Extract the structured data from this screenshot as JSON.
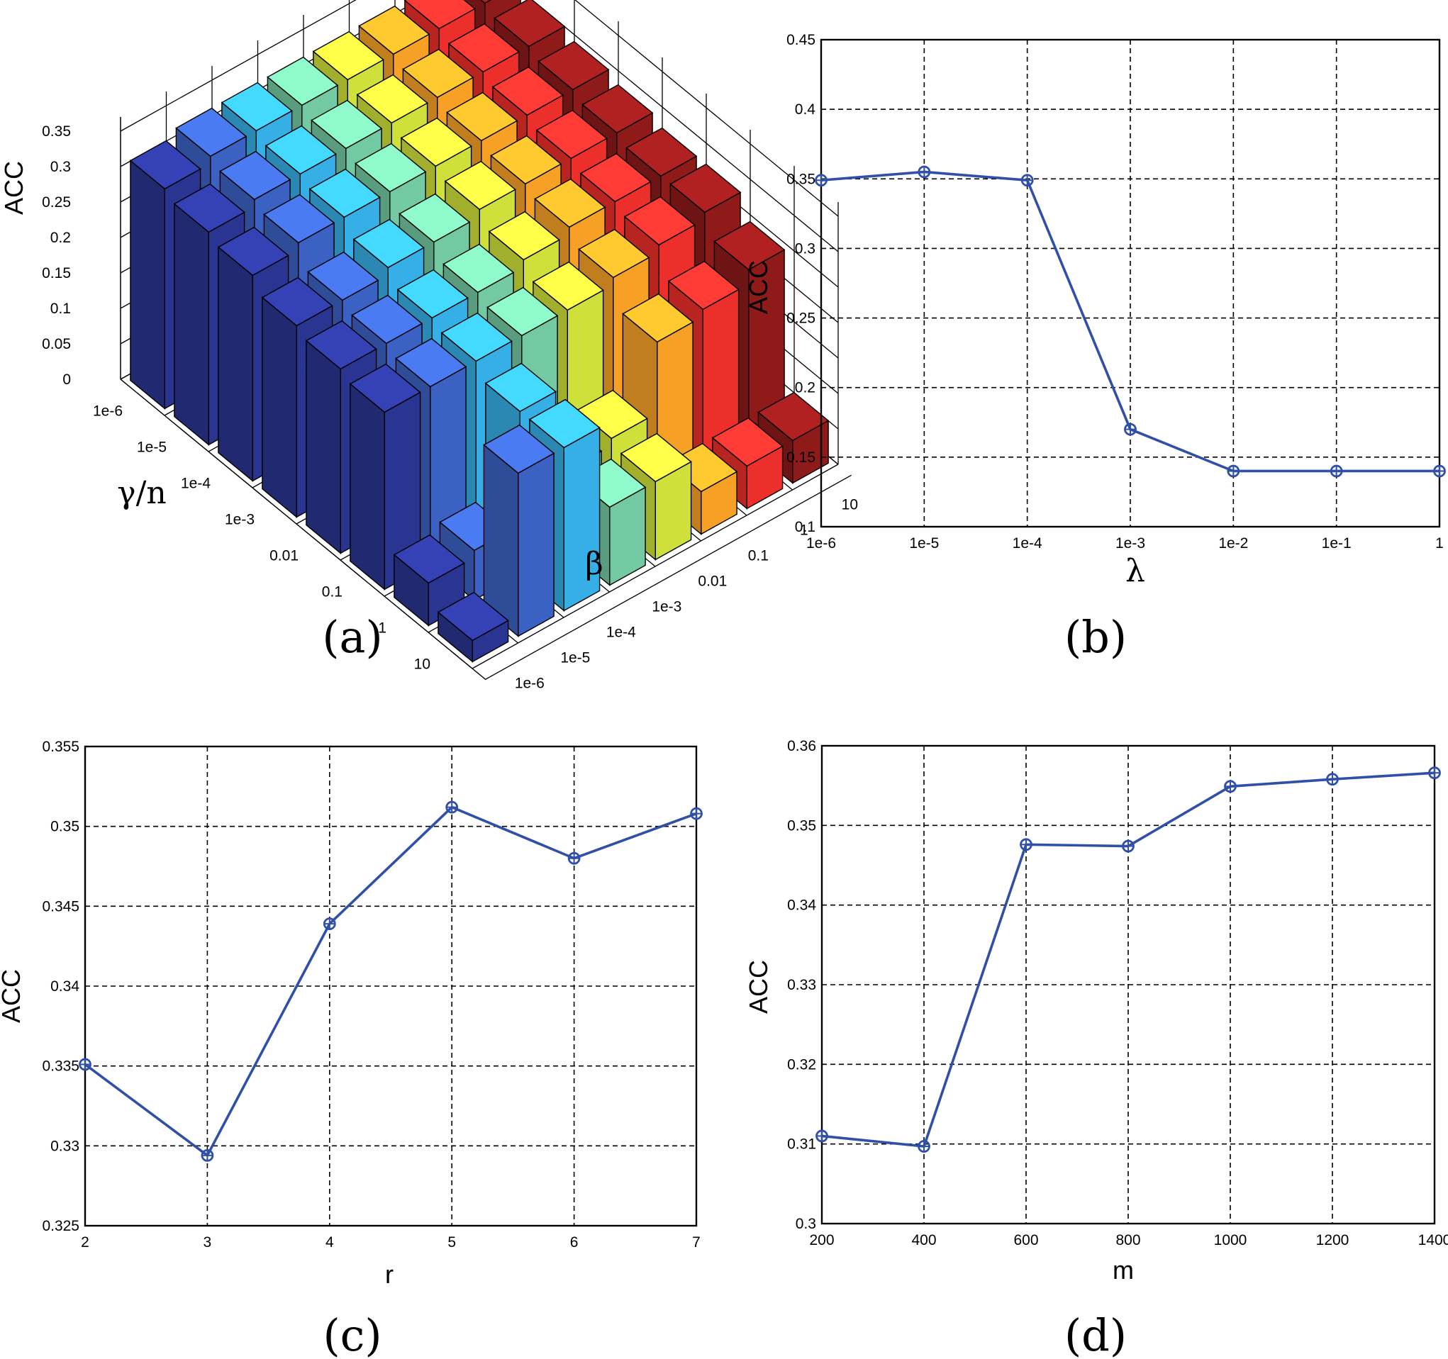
{
  "chart_data": [
    {
      "panel": "a",
      "type": "bar3d",
      "caption": "(a)",
      "zlabel": "ACC",
      "xlabel": "γ/n",
      "ylabel": "β",
      "zlim": [
        0,
        0.35
      ],
      "z_ticks": [
        "0",
        "0.05",
        "0.1",
        "0.15",
        "0.2",
        "0.25",
        "0.3",
        "0.35"
      ],
      "gamma_ticks": [
        "1e-6",
        "1e-5",
        "1e-4",
        "1e-3",
        "0.01",
        "0.1",
        "1",
        "10"
      ],
      "beta_ticks": [
        "1e-6",
        "1e-5",
        "1e-4",
        "1e-3",
        "0.01",
        "0.1",
        "1",
        "10"
      ],
      "beta_colors": [
        "#2a3591",
        "#3b62c2",
        "#36aee6",
        "#72c9a2",
        "#cfe03a",
        "#f6a126",
        "#ec2f2a",
        "#8e1a1a"
      ],
      "values": [
        [
          0.31,
          0.32,
          0.32,
          0.32,
          0.32,
          0.32,
          0.32,
          0.32
        ],
        [
          0.3,
          0.31,
          0.31,
          0.31,
          0.31,
          0.31,
          0.31,
          0.31
        ],
        [
          0.29,
          0.3,
          0.3,
          0.3,
          0.3,
          0.3,
          0.3,
          0.3
        ],
        [
          0.27,
          0.27,
          0.28,
          0.28,
          0.29,
          0.29,
          0.29,
          0.29
        ],
        [
          0.26,
          0.26,
          0.26,
          0.26,
          0.27,
          0.28,
          0.28,
          0.28
        ],
        [
          0.25,
          0.25,
          0.25,
          0.25,
          0.25,
          0.26,
          0.27,
          0.28
        ],
        [
          0.06,
          0.07,
          0.23,
          0.11,
          0.12,
          0.22,
          0.23,
          0.25
        ],
        [
          0.03,
          0.23,
          0.23,
          0.11,
          0.11,
          0.06,
          0.06,
          0.06
        ]
      ]
    },
    {
      "panel": "b",
      "type": "line",
      "caption": "(b)",
      "xlabel": "λ",
      "ylabel": "ACC",
      "x": [
        "1e-6",
        "1e-5",
        "1e-4",
        "1e-3",
        "1e-2",
        "1e-1",
        "1"
      ],
      "values": [
        0.349,
        0.355,
        0.349,
        0.17,
        0.14,
        0.14,
        0.14
      ],
      "ylim": [
        0.1,
        0.45
      ],
      "y_ticks": [
        "0.1",
        "0.15",
        "0.2",
        "0.25",
        "0.3",
        "0.35",
        "0.4",
        "0.45"
      ],
      "grid": true,
      "color": "#3050a8"
    },
    {
      "panel": "c",
      "type": "line",
      "caption": "(c)",
      "xlabel": "r",
      "ylabel": "ACC",
      "x": [
        "2",
        "3",
        "4",
        "5",
        "6",
        "7"
      ],
      "values": [
        0.3351,
        0.3294,
        0.3439,
        0.3512,
        0.348,
        0.3508
      ],
      "ylim": [
        0.325,
        0.355
      ],
      "y_ticks": [
        "0.325",
        "0.33",
        "0.335",
        "0.34",
        "0.345",
        "0.35",
        "0.355"
      ],
      "grid": true,
      "color": "#3050a8"
    },
    {
      "panel": "d",
      "type": "line",
      "caption": "(d)",
      "xlabel": "m",
      "ylabel": "ACC",
      "x": [
        "200",
        "400",
        "600",
        "800",
        "1000",
        "1200",
        "1400"
      ],
      "values": [
        0.311,
        0.3097,
        0.3476,
        0.3474,
        0.3549,
        0.3558,
        0.3566
      ],
      "ylim": [
        0.3,
        0.36
      ],
      "y_ticks": [
        "0.3",
        "0.31",
        "0.32",
        "0.33",
        "0.34",
        "0.35",
        "0.36"
      ],
      "grid": true,
      "color": "#3050a8"
    }
  ]
}
